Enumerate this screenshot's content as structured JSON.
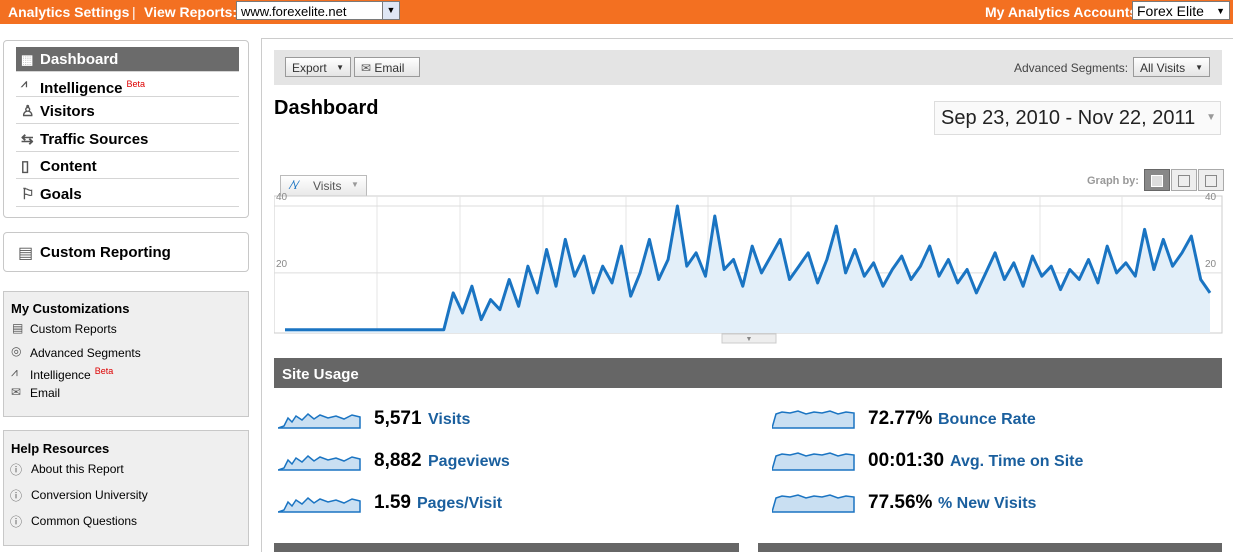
{
  "topbar": {
    "settings": "Analytics Settings",
    "view_reports": "View Reports:",
    "site": "www.forexelite.net",
    "accounts_label": "My Analytics Accounts:",
    "account": "Forex Elite"
  },
  "nav": [
    {
      "label": "Dashboard"
    },
    {
      "label": "Intelligence",
      "badge": "Beta"
    },
    {
      "label": "Visitors"
    },
    {
      "label": "Traffic Sources"
    },
    {
      "label": "Content"
    },
    {
      "label": "Goals"
    }
  ],
  "custom_reporting": "Custom Reporting",
  "my_customizations": {
    "title": "My Customizations",
    "items": [
      "Custom Reports",
      "Advanced Segments",
      "Intelligence",
      "Email"
    ],
    "badge": "Beta"
  },
  "help": {
    "title": "Help Resources",
    "items": [
      "About this Report",
      "Conversion University",
      "Common Questions"
    ]
  },
  "toolbar": {
    "export": "Export",
    "email": "Email",
    "segments_label": "Advanced Segments:",
    "segment": "All Visits"
  },
  "header": {
    "title": "Dashboard",
    "date_range": "Sep 23, 2010 - Nov 22, 2011",
    "graph_by": "Graph by:"
  },
  "chart_data": {
    "type": "line",
    "series": [
      {
        "name": "Visits",
        "color": "#1a74c2",
        "values": [
          3,
          3,
          3,
          3,
          3,
          3,
          3,
          3,
          3,
          3,
          3,
          3,
          3,
          3,
          3,
          3,
          3,
          3,
          14,
          8,
          16,
          6,
          12,
          9,
          18,
          10,
          22,
          14,
          27,
          16,
          30,
          19,
          25,
          14,
          22,
          17,
          28,
          13,
          20,
          30,
          18,
          24,
          40,
          22,
          26,
          19,
          37,
          21,
          24,
          16,
          28,
          20,
          25,
          30,
          18,
          22,
          26,
          17,
          24,
          34,
          20,
          27,
          19,
          23,
          16,
          21,
          25,
          18,
          22,
          28,
          19,
          24,
          17,
          21,
          14,
          20,
          26,
          18,
          23,
          16,
          25,
          19,
          22,
          15,
          21,
          18,
          24,
          17,
          28,
          20,
          23,
          19,
          33,
          21,
          30,
          22,
          26,
          31,
          18,
          14
        ]
      }
    ],
    "ylim": [
      2,
      43
    ],
    "yticks": [
      20,
      40
    ],
    "grid": true
  },
  "site_usage": {
    "title": "Site Usage",
    "metrics": [
      {
        "value": "5,571",
        "label": "Visits"
      },
      {
        "value": "72.77%",
        "label": "Bounce Rate"
      },
      {
        "value": "8,882",
        "label": "Pageviews"
      },
      {
        "value": "00:01:30",
        "label": "Avg. Time on Site"
      },
      {
        "value": "1.59",
        "label": "Pages/Visit"
      },
      {
        "value": "77.56%",
        "label": "% New Visits"
      }
    ]
  }
}
